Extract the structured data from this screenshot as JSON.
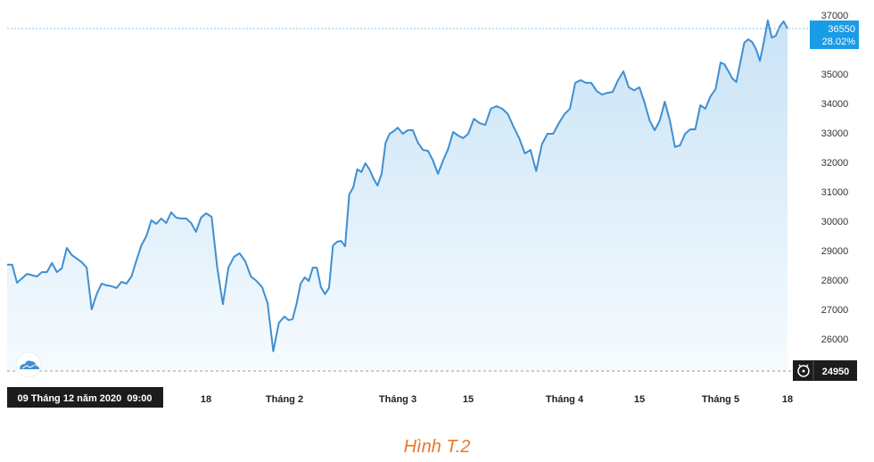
{
  "chart_data": {
    "type": "area",
    "title": "",
    "xlabel": "",
    "ylabel": "",
    "ylim": [
      24950,
      37000
    ],
    "y_axis_position": "right",
    "grid": false,
    "colors": {
      "line": "#3f8fd2",
      "fill_top": "#c9e3f6",
      "fill_bottom": "#f6fbfe",
      "badge": "#1a9be6",
      "tooltip_bg": "#1c1c1c",
      "caption": "#e8782a"
    },
    "y_ticks": [
      "37000",
      "35000",
      "34000",
      "33000",
      "32000",
      "31000",
      "30000",
      "29000",
      "28000",
      "27000",
      "26000"
    ],
    "x_ticks": [
      {
        "date": "2021-01-18",
        "label": "18"
      },
      {
        "date": "2021-02-01",
        "label": "Tháng 2"
      },
      {
        "date": "2021-03-01",
        "label": "Tháng 3"
      },
      {
        "date": "2021-03-15",
        "label": "15"
      },
      {
        "date": "2021-04-01",
        "label": "Tháng 4"
      },
      {
        "date": "2021-04-15",
        "label": "15"
      },
      {
        "date": "2021-05-01",
        "label": "Tháng 5"
      },
      {
        "date": "2021-05-18",
        "label": "18"
      }
    ],
    "points": [
      [
        "2020-12-09",
        28520
      ],
      [
        "2020-12-10",
        28520
      ],
      [
        "2020-12-11",
        27910
      ],
      [
        "2020-12-13",
        28210
      ],
      [
        "2020-12-15",
        28120
      ],
      [
        "2020-12-16",
        28270
      ],
      [
        "2020-12-17",
        28270
      ],
      [
        "2020-12-18",
        28580
      ],
      [
        "2020-12-19",
        28270
      ],
      [
        "2020-12-20",
        28400
      ],
      [
        "2020-12-21",
        29090
      ],
      [
        "2020-12-22",
        28850
      ],
      [
        "2020-12-23",
        28730
      ],
      [
        "2020-12-24",
        28610
      ],
      [
        "2020-12-25",
        28420
      ],
      [
        "2020-12-26",
        27000
      ],
      [
        "2020-12-27",
        27520
      ],
      [
        "2020-12-28",
        27880
      ],
      [
        "2020-12-29",
        27820
      ],
      [
        "2020-12-30",
        27790
      ],
      [
        "2020-12-31",
        27730
      ],
      [
        "2021-01-01",
        27940
      ],
      [
        "2021-01-02",
        27880
      ],
      [
        "2021-01-03",
        28120
      ],
      [
        "2021-01-04",
        28670
      ],
      [
        "2021-01-05",
        29180
      ],
      [
        "2021-01-06",
        29490
      ],
      [
        "2021-01-07",
        30030
      ],
      [
        "2021-01-08",
        29910
      ],
      [
        "2021-01-09",
        30090
      ],
      [
        "2021-01-10",
        29940
      ],
      [
        "2021-01-11",
        30300
      ],
      [
        "2021-01-12",
        30120
      ],
      [
        "2021-01-13",
        30090
      ],
      [
        "2021-01-14",
        30090
      ],
      [
        "2021-01-15",
        29940
      ],
      [
        "2021-01-16",
        29640
      ],
      [
        "2021-01-17",
        30120
      ],
      [
        "2021-01-18",
        30270
      ],
      [
        "2021-01-19",
        30150
      ],
      [
        "2021-01-20",
        28420
      ],
      [
        "2021-01-21",
        27180
      ],
      [
        "2021-01-22",
        28420
      ],
      [
        "2021-01-23",
        28790
      ],
      [
        "2021-01-24",
        28910
      ],
      [
        "2021-01-25",
        28640
      ],
      [
        "2021-01-26",
        28120
      ],
      [
        "2021-01-27",
        27970
      ],
      [
        "2021-01-28",
        27760
      ],
      [
        "2021-01-29",
        27210
      ],
      [
        "2021-01-30",
        25580
      ],
      [
        "2021-01-31",
        26550
      ],
      [
        "2021-02-01",
        26760
      ],
      [
        "2021-02-02",
        26640
      ],
      [
        "2021-02-03",
        26670
      ],
      [
        "2021-02-04",
        27210
      ],
      [
        "2021-02-05",
        27880
      ],
      [
        "2021-02-06",
        28090
      ],
      [
        "2021-02-07",
        27970
      ],
      [
        "2021-02-08",
        28420
      ],
      [
        "2021-02-09",
        28420
      ],
      [
        "2021-02-10",
        27760
      ],
      [
        "2021-02-11",
        27520
      ],
      [
        "2021-02-12",
        27730
      ],
      [
        "2021-02-13",
        29180
      ],
      [
        "2021-02-14",
        29300
      ],
      [
        "2021-02-15",
        29330
      ],
      [
        "2021-02-16",
        29150
      ],
      [
        "2021-02-17",
        30910
      ],
      [
        "2021-02-18",
        31150
      ],
      [
        "2021-02-19",
        31760
      ],
      [
        "2021-02-20",
        31670
      ],
      [
        "2021-02-21",
        31970
      ],
      [
        "2021-02-22",
        31760
      ],
      [
        "2021-02-23",
        31450
      ],
      [
        "2021-02-24",
        31210
      ],
      [
        "2021-02-25",
        31610
      ],
      [
        "2021-02-26",
        32670
      ],
      [
        "2021-02-27",
        32970
      ],
      [
        "2021-02-28",
        33060
      ],
      [
        "2021-03-01",
        33180
      ],
      [
        "2021-03-02",
        32970
      ],
      [
        "2021-03-03",
        33090
      ],
      [
        "2021-03-04",
        33090
      ],
      [
        "2021-03-05",
        32670
      ],
      [
        "2021-03-06",
        32420
      ],
      [
        "2021-03-07",
        32390
      ],
      [
        "2021-03-08",
        32060
      ],
      [
        "2021-03-09",
        31610
      ],
      [
        "2021-03-10",
        32060
      ],
      [
        "2021-03-11",
        32450
      ],
      [
        "2021-03-12",
        33030
      ],
      [
        "2021-03-13",
        32910
      ],
      [
        "2021-03-14",
        32820
      ],
      [
        "2021-03-15",
        32970
      ],
      [
        "2021-03-16",
        33480
      ],
      [
        "2021-03-17",
        33330
      ],
      [
        "2021-03-18",
        33270
      ],
      [
        "2021-03-19",
        33820
      ],
      [
        "2021-03-20",
        33910
      ],
      [
        "2021-03-21",
        33820
      ],
      [
        "2021-03-22",
        33640
      ],
      [
        "2021-03-23",
        33210
      ],
      [
        "2021-03-24",
        32820
      ],
      [
        "2021-03-25",
        32300
      ],
      [
        "2021-03-26",
        32420
      ],
      [
        "2021-03-27",
        31700
      ],
      [
        "2021-03-28",
        32610
      ],
      [
        "2021-03-29",
        32970
      ],
      [
        "2021-03-30",
        32970
      ],
      [
        "2021-03-31",
        33330
      ],
      [
        "2021-04-01",
        33640
      ],
      [
        "2021-04-02",
        33820
      ],
      [
        "2021-04-03",
        34700
      ],
      [
        "2021-04-04",
        34790
      ],
      [
        "2021-04-05",
        34700
      ],
      [
        "2021-04-06",
        34700
      ],
      [
        "2021-04-07",
        34420
      ],
      [
        "2021-04-08",
        34300
      ],
      [
        "2021-04-09",
        34360
      ],
      [
        "2021-04-10",
        34390
      ],
      [
        "2021-04-11",
        34790
      ],
      [
        "2021-04-12",
        35090
      ],
      [
        "2021-04-13",
        34550
      ],
      [
        "2021-04-14",
        34450
      ],
      [
        "2021-04-15",
        34550
      ],
      [
        "2021-04-16",
        34030
      ],
      [
        "2021-04-17",
        33420
      ],
      [
        "2021-04-18",
        33090
      ],
      [
        "2021-04-19",
        33420
      ],
      [
        "2021-04-20",
        34060
      ],
      [
        "2021-04-21",
        33420
      ],
      [
        "2021-04-22",
        32520
      ],
      [
        "2021-04-23",
        32580
      ],
      [
        "2021-04-24",
        32970
      ],
      [
        "2021-04-25",
        33120
      ],
      [
        "2021-04-26",
        33120
      ],
      [
        "2021-04-27",
        33940
      ],
      [
        "2021-04-28",
        33820
      ],
      [
        "2021-04-29",
        34240
      ],
      [
        "2021-04-30",
        34480
      ],
      [
        "2021-05-01",
        35390
      ],
      [
        "2021-05-02",
        35330
      ],
      [
        "2021-05-03",
        35090
      ],
      [
        "2021-05-04",
        34850
      ],
      [
        "2021-05-05",
        34730
      ],
      [
        "2021-05-06",
        35390
      ],
      [
        "2021-05-07",
        36060
      ],
      [
        "2021-05-08",
        36180
      ],
      [
        "2021-05-09",
        36090
      ],
      [
        "2021-05-10",
        35850
      ],
      [
        "2021-05-11",
        35450
      ],
      [
        "2021-05-12",
        36090
      ],
      [
        "2021-05-13",
        36820
      ],
      [
        "2021-05-14",
        36240
      ],
      [
        "2021-05-15",
        36300
      ],
      [
        "2021-05-16",
        36610
      ],
      [
        "2021-05-17",
        36790
      ],
      [
        "2021-05-18",
        36550
      ]
    ],
    "last_value": {
      "value": "36550",
      "change": "28.02%"
    },
    "min_marker": {
      "value": "24950",
      "icon": "alarm-clock-icon"
    },
    "crosshair_label": "09 Tháng 12 năm 2020  09:00",
    "corner_icon": "cloud-logo-icon"
  },
  "caption": "Hình T.2"
}
